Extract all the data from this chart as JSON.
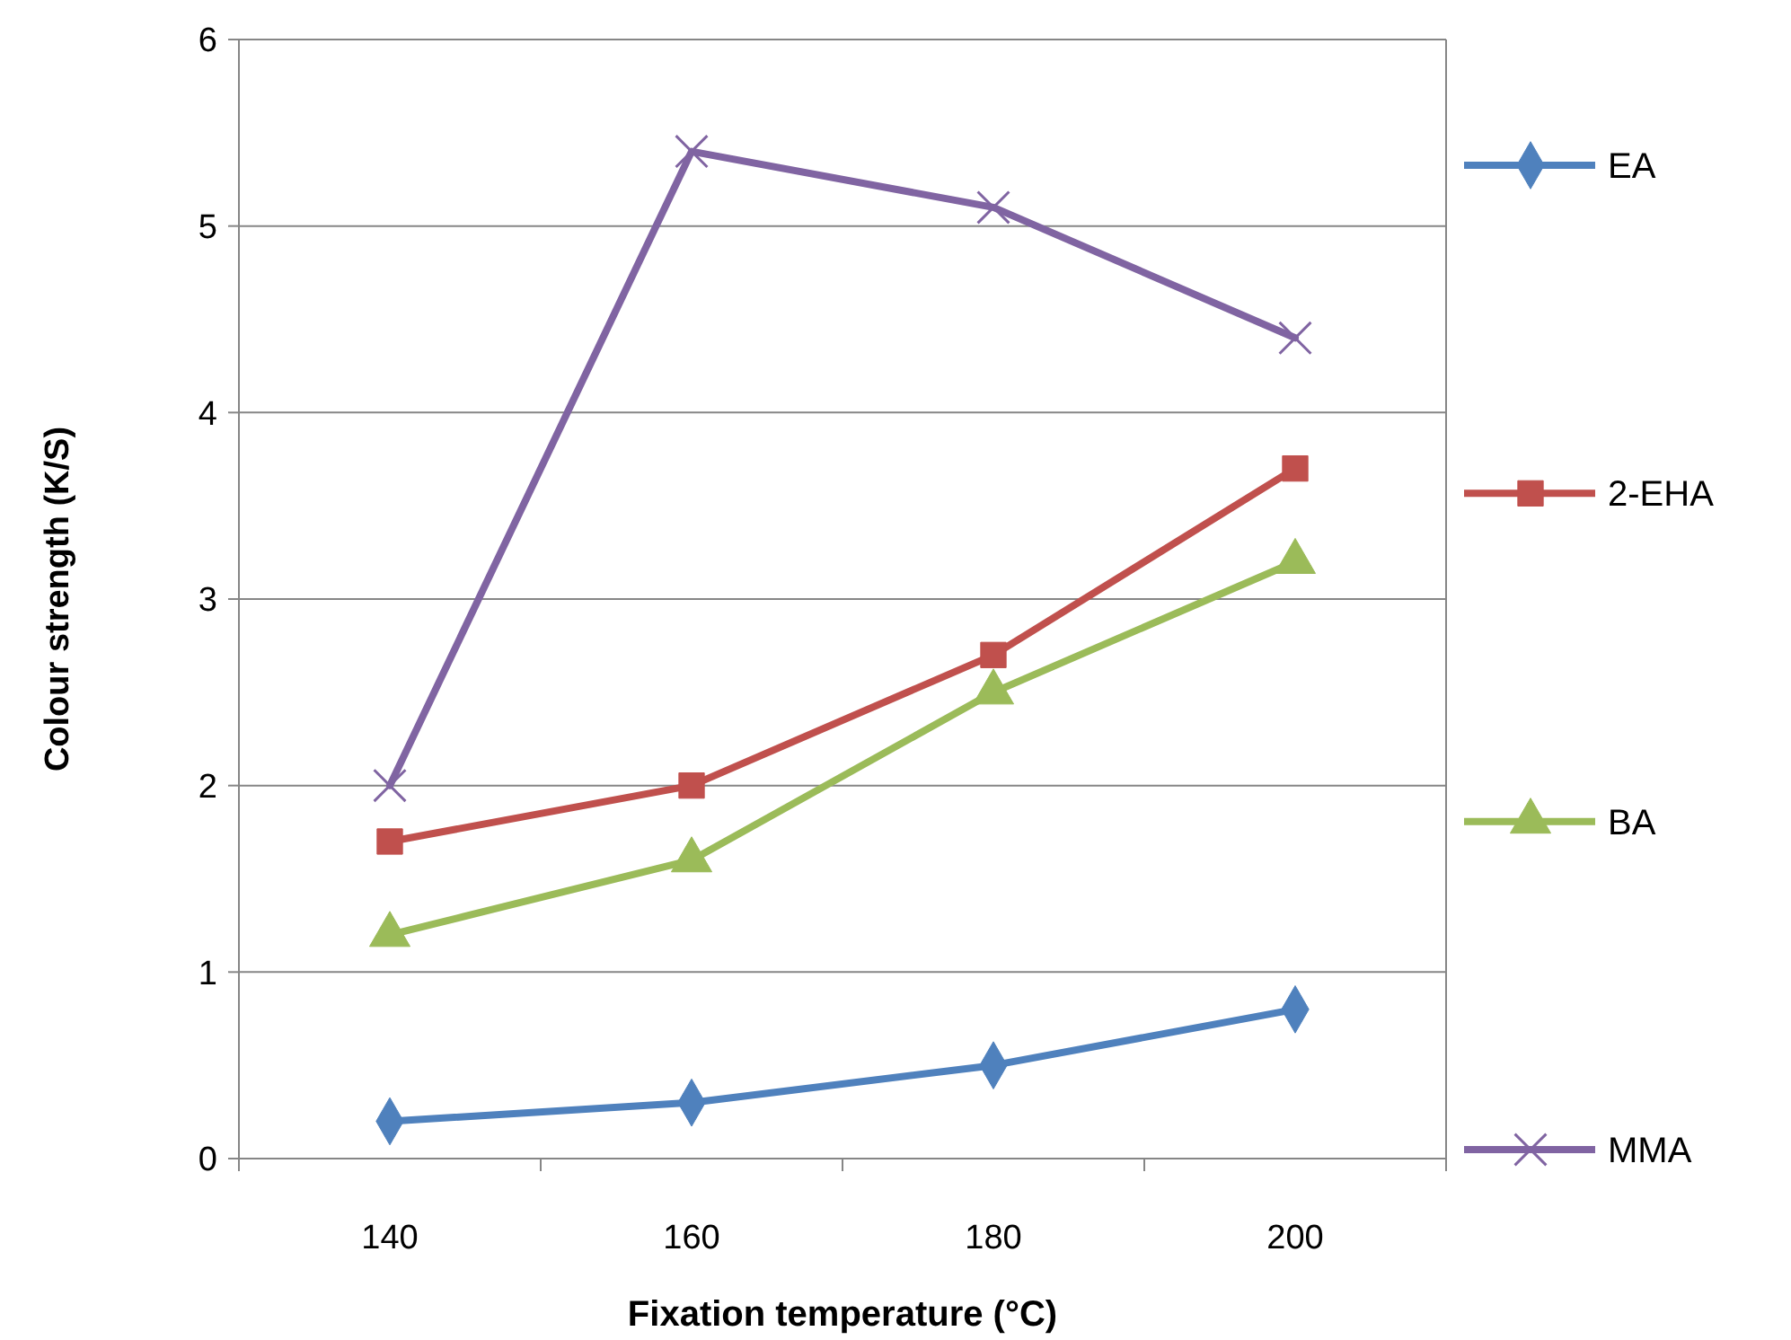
{
  "chart_data": {
    "type": "line",
    "xlabel": "Fixation temperature (°C)",
    "ylabel": "Colour strength (K/S)",
    "categories": [
      "140",
      "160",
      "180",
      "200"
    ],
    "ylim": [
      0,
      6
    ],
    "yticks": [
      0,
      1,
      2,
      3,
      4,
      5,
      6
    ],
    "grid": "y",
    "legend": "right",
    "series": [
      {
        "name": "EA",
        "color": "#4f81bd",
        "marker": "diamond",
        "values": [
          0.2,
          0.3,
          0.5,
          0.8
        ]
      },
      {
        "name": "2-EHA",
        "color": "#c0504d",
        "marker": "square",
        "values": [
          1.7,
          2.0,
          2.7,
          3.7
        ]
      },
      {
        "name": "BA",
        "color": "#9bbb59",
        "marker": "triangle",
        "values": [
          1.2,
          1.6,
          2.5,
          3.2
        ]
      },
      {
        "name": "MMA",
        "color": "#8064a2",
        "marker": "cross",
        "values": [
          2.0,
          5.4,
          5.1,
          4.4
        ]
      }
    ]
  }
}
